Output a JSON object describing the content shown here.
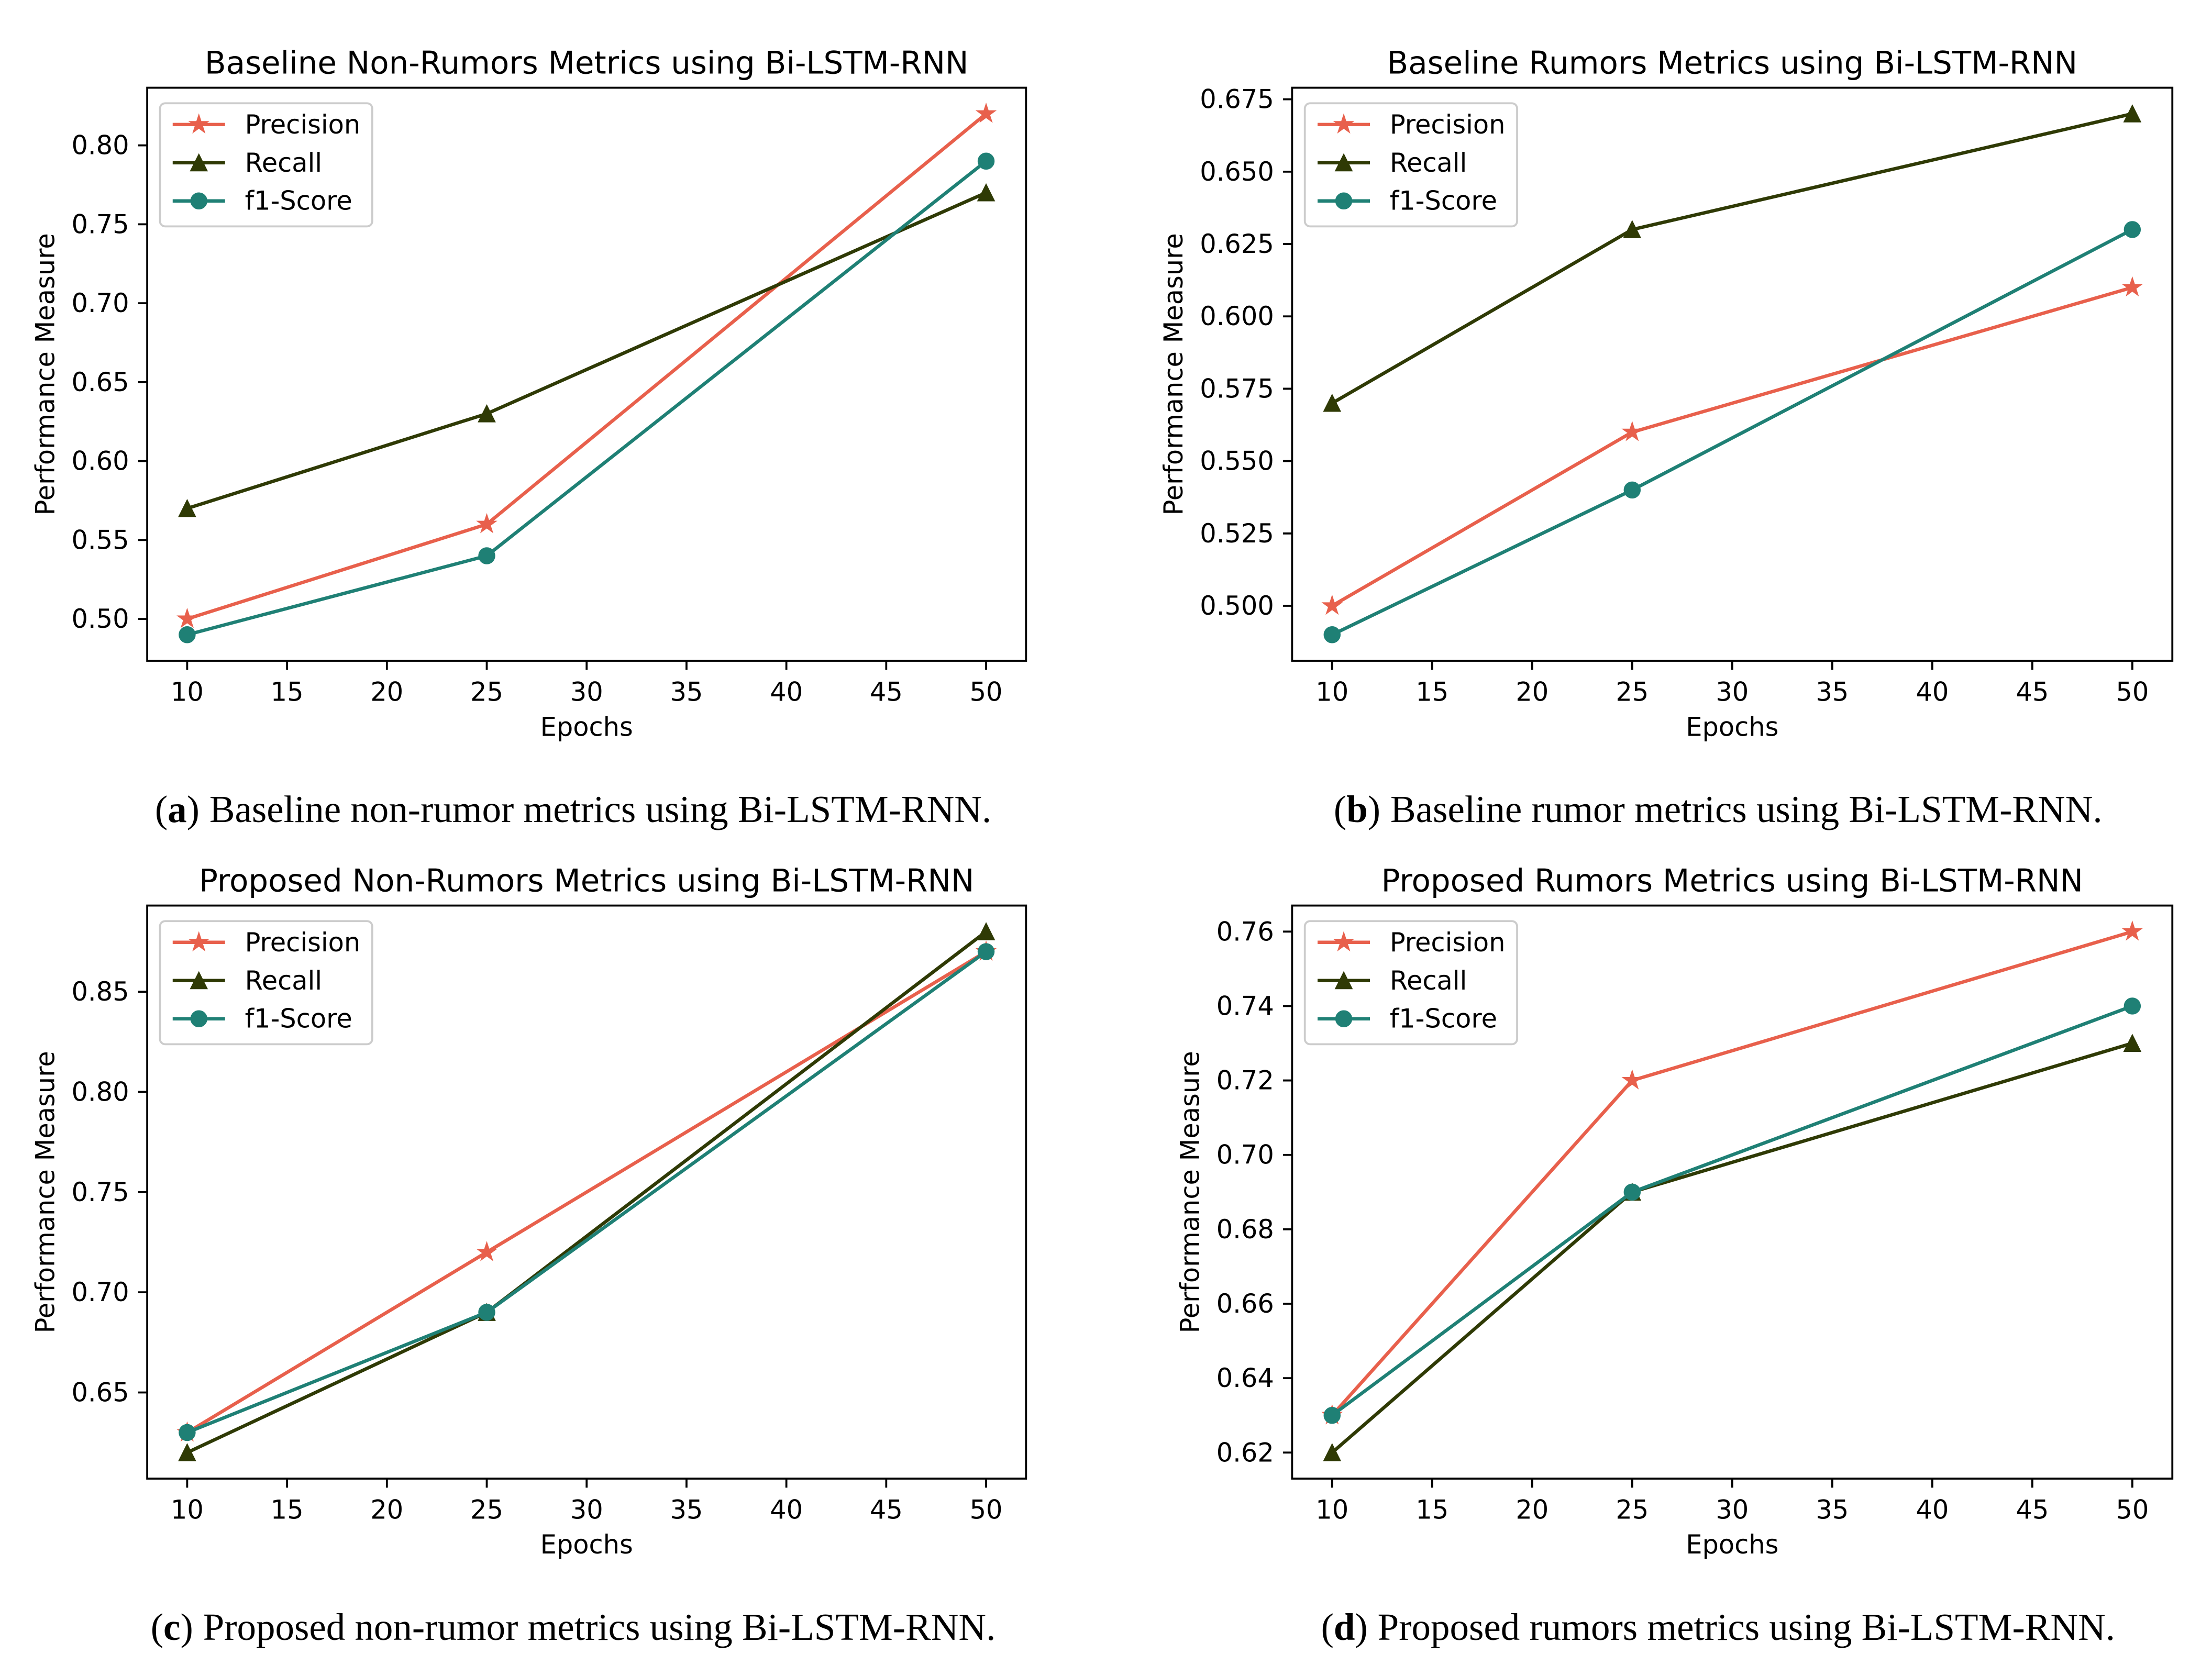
{
  "chart_data": [
    {
      "type": "line",
      "title": "Baseline Non-Rumors Metrics using Bi-LSTM-RNN",
      "xlabel": "Epochs",
      "ylabel": "Performance Measure",
      "x": [
        10,
        25,
        50
      ],
      "xlim": [
        8,
        52
      ],
      "ylim": [
        0.4735,
        0.8365
      ],
      "xticks": [
        "10",
        "15",
        "20",
        "25",
        "30",
        "35",
        "40",
        "45",
        "50"
      ],
      "yticks": [
        "0.50",
        "0.55",
        "0.60",
        "0.65",
        "0.70",
        "0.75",
        "0.80"
      ],
      "grid": false,
      "legend_loc": "upper left",
      "series": [
        {
          "name": "Precision",
          "color": "#e8604c",
          "marker": "star",
          "values": [
            0.5,
            0.56,
            0.82
          ]
        },
        {
          "name": "Recall",
          "color": "#2f3a05",
          "marker": "triangle",
          "values": [
            0.57,
            0.63,
            0.77
          ]
        },
        {
          "name": "f1-Score",
          "color": "#1f8075",
          "marker": "circle",
          "values": [
            0.49,
            0.54,
            0.79
          ]
        }
      ]
    },
    {
      "type": "line",
      "title": "Baseline Rumors Metrics using Bi-LSTM-RNN",
      "xlabel": "Epochs",
      "ylabel": "Performance Measure",
      "x": [
        10,
        25,
        50
      ],
      "xlim": [
        8,
        52
      ],
      "ylim": [
        0.481,
        0.679
      ],
      "xticks": [
        "10",
        "15",
        "20",
        "25",
        "30",
        "35",
        "40",
        "45",
        "50"
      ],
      "yticks": [
        "0.500",
        "0.525",
        "0.550",
        "0.575",
        "0.600",
        "0.625",
        "0.650",
        "0.675"
      ],
      "grid": false,
      "legend_loc": "upper left",
      "series": [
        {
          "name": "Precision",
          "color": "#e8604c",
          "marker": "star",
          "values": [
            0.5,
            0.56,
            0.61
          ]
        },
        {
          "name": "Recall",
          "color": "#2f3a05",
          "marker": "triangle",
          "values": [
            0.57,
            0.63,
            0.67
          ]
        },
        {
          "name": "f1-Score",
          "color": "#1f8075",
          "marker": "circle",
          "values": [
            0.49,
            0.54,
            0.63
          ]
        }
      ]
    },
    {
      "type": "line",
      "title": "Proposed Non-Rumors Metrics using Bi-LSTM-RNN",
      "xlabel": "Epochs",
      "ylabel": "Performance Measure",
      "x": [
        10,
        25,
        50
      ],
      "xlim": [
        8,
        52
      ],
      "ylim": [
        0.607,
        0.893
      ],
      "xticks": [
        "10",
        "15",
        "20",
        "25",
        "30",
        "35",
        "40",
        "45",
        "50"
      ],
      "yticks": [
        "0.65",
        "0.70",
        "0.75",
        "0.80",
        "0.85"
      ],
      "grid": false,
      "legend_loc": "upper left",
      "series": [
        {
          "name": "Precision",
          "color": "#e8604c",
          "marker": "star",
          "values": [
            0.63,
            0.72,
            0.87
          ]
        },
        {
          "name": "Recall",
          "color": "#2f3a05",
          "marker": "triangle",
          "values": [
            0.62,
            0.69,
            0.88
          ]
        },
        {
          "name": "f1-Score",
          "color": "#1f8075",
          "marker": "circle",
          "values": [
            0.63,
            0.69,
            0.87
          ]
        }
      ]
    },
    {
      "type": "line",
      "title": "Proposed Rumors Metrics using Bi-LSTM-RNN",
      "xlabel": "Epochs",
      "ylabel": "Performance Measure",
      "x": [
        10,
        25,
        50
      ],
      "xlim": [
        8,
        52
      ],
      "ylim": [
        0.613,
        0.767
      ],
      "xticks": [
        "10",
        "15",
        "20",
        "25",
        "30",
        "35",
        "40",
        "45",
        "50"
      ],
      "yticks": [
        "0.62",
        "0.64",
        "0.66",
        "0.68",
        "0.70",
        "0.72",
        "0.74",
        "0.76"
      ],
      "grid": false,
      "legend_loc": "upper left",
      "series": [
        {
          "name": "Precision",
          "color": "#e8604c",
          "marker": "star",
          "values": [
            0.63,
            0.72,
            0.76
          ]
        },
        {
          "name": "Recall",
          "color": "#2f3a05",
          "marker": "triangle",
          "values": [
            0.62,
            0.69,
            0.73
          ]
        },
        {
          "name": "f1-Score",
          "color": "#1f8075",
          "marker": "circle",
          "values": [
            0.63,
            0.69,
            0.74
          ]
        }
      ]
    }
  ],
  "captions": [
    {
      "open": "(",
      "label": "a",
      "close": ")",
      "text": "Baseline non-rumor metrics using Bi-LSTM-RNN."
    },
    {
      "open": "(",
      "label": "b",
      "close": ")",
      "text": "Baseline rumor metrics using Bi-LSTM-RNN."
    },
    {
      "open": "(",
      "label": "c",
      "close": ")",
      "text": "Proposed non-rumor metrics using Bi-LSTM-RNN."
    },
    {
      "open": "(",
      "label": "d",
      "close": ")",
      "text": "Proposed rumors metrics using Bi-LSTM-RNN."
    }
  ]
}
